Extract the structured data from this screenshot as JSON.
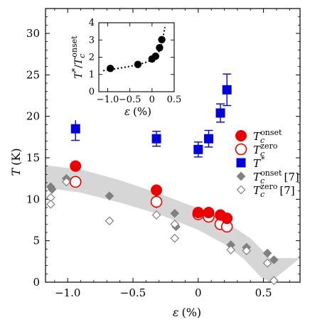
{
  "chart_data": [
    {
      "type": "scatter",
      "xlabel_var": "ε",
      "xlabel_unit": "(%)",
      "ylabel_var": "T",
      "ylabel_unit": "(K)",
      "xlim": [
        -1.17,
        0.78
      ],
      "ylim": [
        0,
        33
      ],
      "xticks": [
        -1.0,
        -0.5,
        0.0,
        0.5
      ],
      "xtick_labels": [
        "−1.0",
        "−0.5",
        "0",
        "0.5"
      ],
      "yticks": [
        0,
        5,
        10,
        15,
        20,
        25,
        30
      ],
      "ytick_labels": [
        "0",
        "5",
        "10",
        "15",
        "20",
        "25",
        "30"
      ],
      "band": {
        "color": "#d6d6d6",
        "upper": [
          [
            -1.17,
            14.1
          ],
          [
            -0.9,
            13.6
          ],
          [
            -0.6,
            12.3
          ],
          [
            -0.3,
            10.7
          ],
          [
            0.0,
            8.9
          ],
          [
            0.2,
            7.4
          ],
          [
            0.4,
            5.3
          ],
          [
            0.55,
            2.9
          ],
          [
            0.78,
            2.9
          ]
        ],
        "lower": [
          [
            -1.17,
            11.4
          ],
          [
            -0.9,
            10.8
          ],
          [
            -0.6,
            9.6
          ],
          [
            -0.3,
            8.2
          ],
          [
            0.0,
            6.3
          ],
          [
            0.2,
            4.6
          ],
          [
            0.35,
            2.8
          ],
          [
            0.48,
            0.6
          ],
          [
            0.55,
            0.0
          ]
        ]
      },
      "series": [
        {
          "key": "tc_onset",
          "marker": "filled-circle",
          "color": "#ee0000",
          "points": [
            [
              -0.94,
              14.0
            ],
            [
              -0.32,
              11.1
            ],
            [
              0.0,
              8.4
            ],
            [
              0.08,
              8.4
            ],
            [
              0.17,
              8.1
            ],
            [
              0.22,
              7.7
            ]
          ]
        },
        {
          "key": "tc_zero",
          "marker": "open-circle",
          "color": "#ee0000",
          "points": [
            [
              -0.94,
              12.1
            ],
            [
              -0.32,
              9.7
            ],
            [
              0.0,
              8.2
            ],
            [
              0.08,
              7.9
            ],
            [
              0.17,
              7.0
            ],
            [
              0.22,
              6.7
            ]
          ]
        },
        {
          "key": "t_star",
          "marker": "filled-square",
          "color": "#0000dd",
          "points": [
            {
              "x": -0.94,
              "y": 18.5,
              "err": 1.4
            },
            {
              "x": -0.32,
              "y": 17.3,
              "err": 0.9
            },
            {
              "x": 0.0,
              "y": 16.0,
              "err": 0.9
            },
            {
              "x": 0.08,
              "y": 17.3,
              "err": 1.0
            },
            {
              "x": 0.17,
              "y": 20.4,
              "err": 1.1
            },
            {
              "x": 0.22,
              "y": 23.2,
              "err": 1.9
            }
          ]
        },
        {
          "key": "tc_onset_ref7",
          "marker": "filled-diamond",
          "color": "#808080",
          "points": [
            [
              -1.13,
              11.5
            ],
            [
              -1.12,
              11.2
            ],
            [
              -1.01,
              12.5
            ],
            [
              -0.68,
              10.4
            ],
            [
              -0.32,
              9.4
            ],
            [
              -0.18,
              8.3
            ],
            [
              -0.17,
              6.7
            ],
            [
              0.25,
              4.5
            ],
            [
              0.37,
              4.2
            ],
            [
              0.53,
              3.5
            ],
            [
              0.58,
              2.7
            ]
          ]
        },
        {
          "key": "tc_zero_ref7",
          "marker": "open-diamond",
          "color": "#808080",
          "points": [
            [
              -1.13,
              10.2
            ],
            [
              -1.13,
              9.4
            ],
            [
              -1.01,
              12.1
            ],
            [
              -0.68,
              7.4
            ],
            [
              -0.32,
              8.1
            ],
            [
              -0.18,
              7.0
            ],
            [
              -0.18,
              5.3
            ],
            [
              0.25,
              3.9
            ],
            [
              0.37,
              3.8
            ],
            [
              0.53,
              2.3
            ],
            [
              0.58,
              0.2
            ]
          ]
        }
      ],
      "legend": {
        "position": "right-middle",
        "entries": [
          {
            "series": "tc_onset",
            "main": "T",
            "sub": "c",
            "sup": "onset",
            "ref": ""
          },
          {
            "series": "tc_zero",
            "main": "T",
            "sub": "c",
            "sup": "zero",
            "ref": ""
          },
          {
            "series": "t_star",
            "main": "T",
            "sub": "",
            "sup": "*",
            "ref": ""
          },
          {
            "series": "tc_onset_ref7",
            "main": "T",
            "sub": "c",
            "sup": "onset",
            "ref": "[7]"
          },
          {
            "series": "tc_zero_ref7",
            "main": "T",
            "sub": "c",
            "sup": "zero",
            "ref": "[7]"
          }
        ]
      }
    },
    {
      "type": "scatter",
      "role": "inset",
      "xlabel_var": "ε",
      "xlabel_unit": "(%)",
      "ylabel": "T*/Tc onset",
      "xlim": [
        -1.2,
        0.5
      ],
      "ylim": [
        0,
        4
      ],
      "xticks": [
        -1.0,
        -0.5,
        0.0,
        0.5
      ],
      "xtick_labels": [
        "−1.0",
        "−0.5",
        "0",
        "0.5"
      ],
      "yticks": [
        0,
        1,
        2,
        3,
        4
      ],
      "ytick_labels": [
        "0",
        "1",
        "2",
        "3",
        "4"
      ],
      "points": [
        [
          -0.94,
          1.35
        ],
        [
          -0.32,
          1.58
        ],
        [
          0.0,
          1.9
        ],
        [
          0.08,
          2.06
        ],
        [
          0.17,
          2.55
        ],
        [
          0.22,
          3.02
        ]
      ],
      "fit_curve": [
        [
          -1.1,
          1.22
        ],
        [
          -0.9,
          1.3
        ],
        [
          -0.7,
          1.38
        ],
        [
          -0.5,
          1.47
        ],
        [
          -0.35,
          1.55
        ],
        [
          -0.2,
          1.65
        ],
        [
          -0.1,
          1.74
        ],
        [
          0.0,
          1.85
        ],
        [
          0.08,
          2.0
        ],
        [
          0.15,
          2.3
        ],
        [
          0.2,
          2.65
        ],
        [
          0.24,
          3.05
        ],
        [
          0.27,
          3.45
        ],
        [
          0.29,
          3.75
        ]
      ]
    }
  ]
}
